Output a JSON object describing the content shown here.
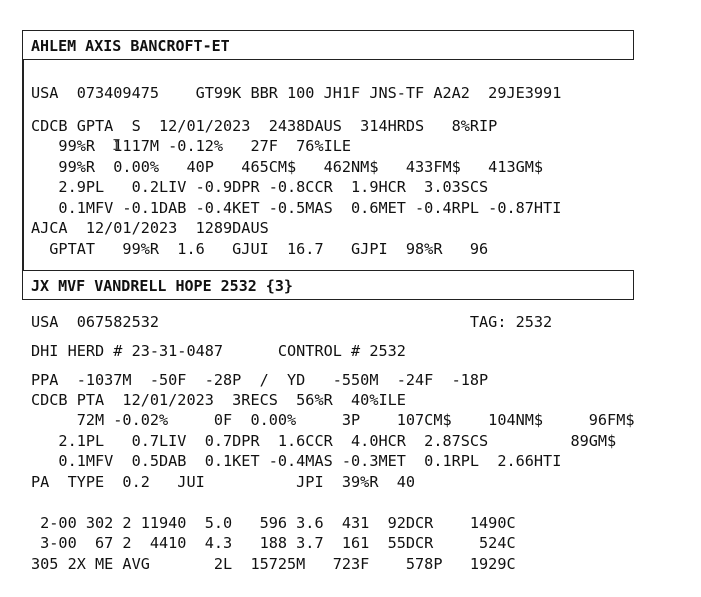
{
  "section1": {
    "title": "AHLEM AXIS BANCROFT-ET",
    "lines": [
      "USA  073409475    GT99K BBR 100 JH1F JNS-TF A2A2  29JE3991",
      "CDCB GPTA  S  12/01/2023  2438DAUS  314HRDS   8%RIP",
      "   99%R  1117M -0.12%   27F  76%ILE",
      "   99%R  0.00%   40P   465CM$   462NM$   433FM$   413GM$",
      "   2.9PL   0.2LIV -0.9DPR -0.8CCR  1.9HCR  3.03SCS",
      "   0.1MFV -0.1DAB -0.4KET -0.5MAS  0.6MET -0.4RPL -0.87HTI",
      "AJCA  12/01/2023  1289DAUS",
      "  GPTAT   99%R  1.6   GJUI  16.7   GJPI  98%R   96"
    ]
  },
  "section2": {
    "title": "JX MVF VANDRELL HOPE 2532 {3}",
    "lines": [
      "USA  067582532                                  TAG: 2532",
      "DHI HERD # 23-31-0487      CONTROL # 2532",
      "PPA  -1037M  -50F  -28P  /  YD   -550M  -24F  -18P",
      "CDCB PTA  12/01/2023  3RECS  56%R  40%ILE",
      "     72M -0.02%     0F  0.00%     3P    107CM$    104NM$     96FM$",
      "   2.1PL   0.7LIV  0.7DPR  1.6CCR  4.0HCR  2.87SCS         89GM$",
      "   0.1MFV  0.5DAB  0.1KET -0.4MAS -0.3MET  0.1RPL  2.66HTI",
      "PA  TYPE  0.2   JUI          JPI  39%R  40",
      "",
      " 2-00 302 2 11940  5.0   596 3.6  431  92DCR    1490C",
      " 3-00  67 2  4410  4.3   188 3.7  161  55DCR     524C",
      "305 2X ME AVG       2L  15725M   723F    578P   1929C"
    ]
  }
}
